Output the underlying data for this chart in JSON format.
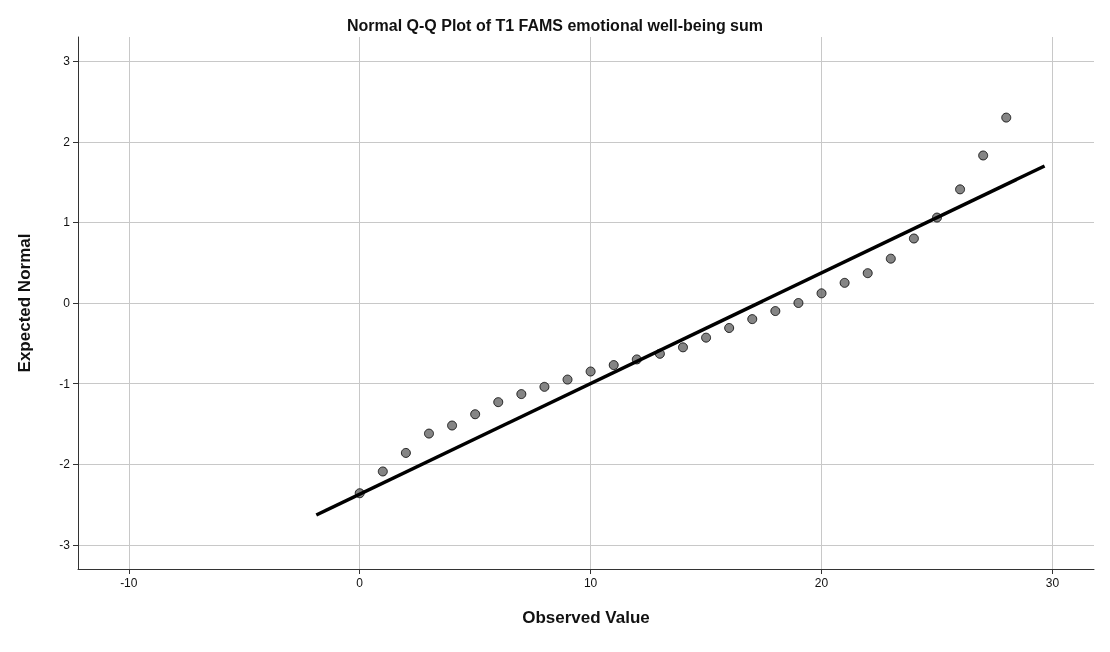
{
  "chart_data": {
    "type": "scatter",
    "title": "Normal Q-Q Plot of T1 FAMS emotional well-being sum",
    "xlabel": "Observed Value",
    "ylabel": "Expected Normal",
    "xlim": [
      -12.2,
      31.8
    ],
    "xticks": [
      -10,
      0,
      10,
      20,
      30
    ],
    "ylim": [
      -3.3,
      3.3
    ],
    "yticks": [
      -3,
      -2,
      -1,
      0,
      1,
      2,
      3
    ],
    "grid": true,
    "series": [
      {
        "marker": "circle",
        "color": "#666666",
        "x": [
          0,
          1,
          2,
          3,
          4,
          5,
          6,
          7,
          8,
          9,
          10,
          11,
          12,
          13,
          14,
          15,
          16,
          17,
          18,
          19,
          20,
          21,
          22,
          23,
          24,
          25,
          26,
          27,
          28
        ],
        "values": [
          -2.36,
          -2.09,
          -1.86,
          -1.62,
          -1.52,
          -1.38,
          -1.23,
          -1.13,
          -1.04,
          -0.95,
          -0.85,
          -0.77,
          -0.7,
          -0.63,
          -0.55,
          -0.43,
          -0.31,
          -0.2,
          -0.1,
          0,
          0.12,
          0.25,
          0.37,
          0.55,
          0.8,
          1.06,
          1.41,
          1.83,
          2.3
        ]
      },
      {
        "type": "line",
        "marker": "none",
        "color": "#000000",
        "x": [
          -1.88,
          29.66
        ],
        "values": [
          -2.63,
          1.7
        ]
      }
    ]
  }
}
